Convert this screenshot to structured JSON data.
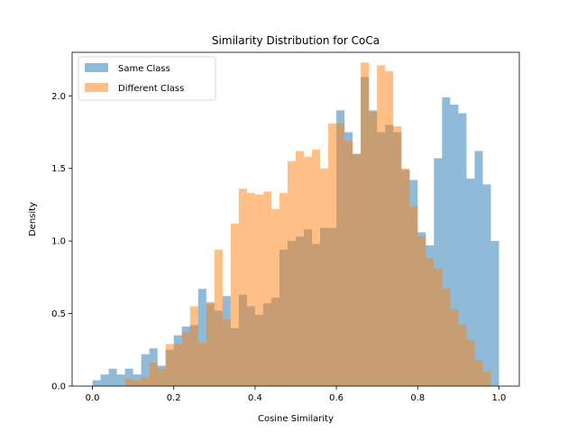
{
  "chart_data": {
    "type": "bar",
    "title": "Similarity Distribution for CoCa",
    "xlabel": "Cosine Similarity",
    "ylabel": "Density",
    "xlim": [
      -0.05,
      1.05
    ],
    "ylim": [
      0,
      2.3
    ],
    "xticks": [
      "0.0",
      "0.2",
      "0.4",
      "0.6",
      "0.8",
      "1.0"
    ],
    "yticks": [
      "0.0",
      "0.5",
      "1.0",
      "1.5",
      "2.0"
    ],
    "grid": false,
    "legend_position": "top-left",
    "bin_width": 0.02,
    "series": [
      {
        "name": "Same Class",
        "color": "#1f77b4",
        "opacity": 0.5,
        "x": [
          0.0,
          0.02,
          0.04,
          0.06,
          0.08,
          0.1,
          0.12,
          0.14,
          0.16,
          0.18,
          0.2,
          0.22,
          0.24,
          0.26,
          0.28,
          0.3,
          0.32,
          0.34,
          0.36,
          0.38,
          0.4,
          0.42,
          0.44,
          0.46,
          0.48,
          0.5,
          0.52,
          0.54,
          0.56,
          0.58,
          0.6,
          0.62,
          0.64,
          0.66,
          0.68,
          0.7,
          0.72,
          0.74,
          0.76,
          0.78,
          0.8,
          0.82,
          0.84,
          0.86,
          0.88,
          0.9,
          0.92,
          0.94,
          0.96,
          0.98
        ],
        "values": [
          0.04,
          0.08,
          0.12,
          0.08,
          0.12,
          0.08,
          0.22,
          0.26,
          0.14,
          0.25,
          0.35,
          0.41,
          0.42,
          0.67,
          0.57,
          0.52,
          0.62,
          0.4,
          0.63,
          0.55,
          0.49,
          0.57,
          0.61,
          0.94,
          1.0,
          1.03,
          1.08,
          0.98,
          1.09,
          1.09,
          1.9,
          1.75,
          1.6,
          2.13,
          1.9,
          1.75,
          1.8,
          1.75,
          1.49,
          1.42,
          1.06,
          0.97,
          1.57,
          1.99,
          1.94,
          1.88,
          1.43,
          1.62,
          1.39,
          1.0
        ]
      },
      {
        "name": "Different Class",
        "color": "#ff7f0e",
        "opacity": 0.5,
        "x": [
          0.0,
          0.02,
          0.04,
          0.06,
          0.08,
          0.1,
          0.12,
          0.14,
          0.16,
          0.18,
          0.2,
          0.22,
          0.24,
          0.26,
          0.28,
          0.3,
          0.32,
          0.34,
          0.36,
          0.38,
          0.4,
          0.42,
          0.44,
          0.46,
          0.48,
          0.5,
          0.52,
          0.54,
          0.56,
          0.58,
          0.6,
          0.62,
          0.64,
          0.66,
          0.68,
          0.7,
          0.72,
          0.74,
          0.76,
          0.78,
          0.8,
          0.82,
          0.84,
          0.86,
          0.88,
          0.9,
          0.92,
          0.94,
          0.96,
          0.98
        ],
        "values": [
          0.0,
          0.0,
          0.0,
          0.0,
          0.05,
          0.04,
          0.06,
          0.16,
          0.12,
          0.29,
          0.29,
          0.37,
          0.55,
          0.3,
          0.58,
          0.94,
          0.46,
          1.12,
          1.36,
          1.33,
          1.32,
          1.34,
          1.22,
          1.33,
          1.55,
          1.62,
          1.58,
          1.63,
          1.5,
          1.81,
          1.81,
          1.69,
          1.6,
          2.23,
          1.89,
          2.21,
          2.17,
          1.79,
          1.5,
          1.24,
          1.03,
          0.88,
          0.81,
          0.67,
          0.53,
          0.42,
          0.32,
          0.18,
          0.1,
          0.0
        ]
      }
    ]
  }
}
